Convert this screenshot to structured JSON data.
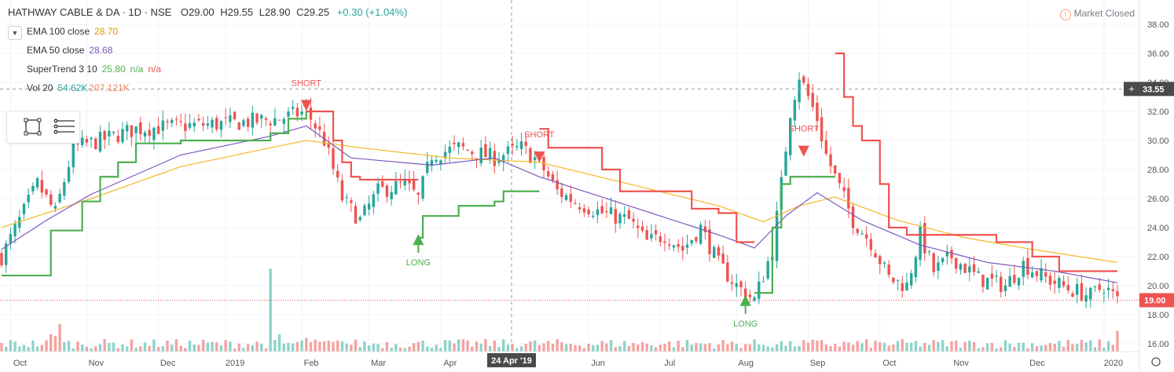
{
  "header": {
    "symbol": "HATHWAY CABLE & DA · 1D · NSE",
    "open": "O29.00",
    "high": "H29.55",
    "low": "L28.90",
    "close": "C29.25",
    "change": "+0.30 (+1.04%)"
  },
  "legend": [
    {
      "name": "EMA 100 close",
      "value": "28.70",
      "color": "#f5b826"
    },
    {
      "name": "EMA 50 close",
      "value": "28.68",
      "color": "#7e57c2"
    },
    {
      "name": "SuperTrend 3 10",
      "value": "25.80",
      "extra": "n/a",
      "extra2": "n/a",
      "color": "#4caf50",
      "color2": "#ef5350"
    },
    {
      "name": "Vol 20",
      "value": "54.62K",
      "extra": "207.121K",
      "color": "#26a69a",
      "color2": "#ef8a65"
    }
  ],
  "collapse_icon": "chevron-down-icon",
  "market_status": "Market Closed",
  "crosshair_date": "24 Apr '19",
  "crosshair_price": "33.55",
  "last_price": "19.00",
  "colors": {
    "up": "#26a69a",
    "down": "#ef5350",
    "ema100": "#f5b826",
    "ema50": "#7e57c2",
    "st_up": "#4caf50",
    "st_down": "#ef5350",
    "vol_up": "#8ed3c9",
    "vol_down": "#f5a3a1"
  },
  "chart_data": {
    "type": "candlestick",
    "ylim": [
      15,
      39
    ],
    "y_ticks": [
      16,
      18,
      20,
      22,
      24,
      26,
      28,
      30,
      32,
      34,
      36,
      38
    ],
    "x_ticks": [
      {
        "label": "Oct",
        "t": 2
      },
      {
        "label": "Nov",
        "t": 19
      },
      {
        "label": "Dec",
        "t": 35
      },
      {
        "label": "2019",
        "t": 50
      },
      {
        "label": "Feb",
        "t": 67
      },
      {
        "label": "Mar",
        "t": 82
      },
      {
        "label": "Apr",
        "t": 98
      },
      {
        "label": "Jun",
        "t": 131
      },
      {
        "label": "Jul",
        "t": 147
      },
      {
        "label": "Aug",
        "t": 164
      },
      {
        "label": "Sep",
        "t": 180
      },
      {
        "label": "Oct",
        "t": 196
      },
      {
        "label": "Nov",
        "t": 212
      },
      {
        "label": "Dec",
        "t": 229
      },
      {
        "label": "2020",
        "t": 246
      }
    ],
    "n_bars": 250,
    "key_closes": [
      [
        0,
        22.0
      ],
      [
        4,
        24.5
      ],
      [
        8,
        27.0
      ],
      [
        12,
        25.0
      ],
      [
        16,
        29.5
      ],
      [
        22,
        30.0
      ],
      [
        30,
        30.8
      ],
      [
        40,
        31.0
      ],
      [
        52,
        31.2
      ],
      [
        62,
        31.5
      ],
      [
        68,
        32.0
      ],
      [
        72,
        30.0
      ],
      [
        76,
        26.0
      ],
      [
        80,
        24.5
      ],
      [
        84,
        26.5
      ],
      [
        90,
        27.0
      ],
      [
        93,
        26.0
      ],
      [
        96,
        29.0
      ],
      [
        102,
        29.5
      ],
      [
        110,
        28.8
      ],
      [
        116,
        29.5
      ],
      [
        120,
        28.5
      ],
      [
        124,
        26.5
      ],
      [
        128,
        25.8
      ],
      [
        134,
        25.0
      ],
      [
        140,
        24.5
      ],
      [
        144,
        23.0
      ],
      [
        148,
        23.5
      ],
      [
        152,
        22.5
      ],
      [
        156,
        24.0
      ],
      [
        160,
        21.5
      ],
      [
        164,
        20.0
      ],
      [
        168,
        19.0
      ],
      [
        172,
        22.5
      ],
      [
        174,
        27.0
      ],
      [
        176,
        32.0
      ],
      [
        178,
        34.5
      ],
      [
        180,
        33.0
      ],
      [
        182,
        31.5
      ],
      [
        184,
        29.0
      ],
      [
        186,
        27.5
      ],
      [
        190,
        24.5
      ],
      [
        194,
        23.0
      ],
      [
        198,
        20.5
      ],
      [
        202,
        20.0
      ],
      [
        205,
        23.5
      ],
      [
        208,
        21.0
      ],
      [
        212,
        22.0
      ],
      [
        218,
        20.5
      ],
      [
        224,
        20.0
      ],
      [
        228,
        21.5
      ],
      [
        233,
        20.5
      ],
      [
        238,
        19.8
      ],
      [
        243,
        19.3
      ],
      [
        246,
        20.0
      ],
      [
        249,
        19.0
      ]
    ],
    "ema100_points": [
      [
        0,
        24.0
      ],
      [
        20,
        26.0
      ],
      [
        40,
        28.2
      ],
      [
        60,
        29.5
      ],
      [
        68,
        30.0
      ],
      [
        80,
        29.5
      ],
      [
        100,
        28.8
      ],
      [
        120,
        28.5
      ],
      [
        140,
        27.0
      ],
      [
        160,
        25.5
      ],
      [
        170,
        24.4
      ],
      [
        178,
        25.5
      ],
      [
        186,
        26.1
      ],
      [
        200,
        24.5
      ],
      [
        215,
        23.3
      ],
      [
        230,
        22.5
      ],
      [
        249,
        21.6
      ]
    ],
    "ema50_points": [
      [
        0,
        22.5
      ],
      [
        10,
        24.5
      ],
      [
        20,
        26.3
      ],
      [
        40,
        29.0
      ],
      [
        60,
        30.3
      ],
      [
        68,
        31.0
      ],
      [
        78,
        28.8
      ],
      [
        96,
        28.3
      ],
      [
        110,
        28.8
      ],
      [
        120,
        27.5
      ],
      [
        140,
        25.5
      ],
      [
        160,
        23.5
      ],
      [
        168,
        22.6
      ],
      [
        175,
        24.8
      ],
      [
        182,
        26.4
      ],
      [
        192,
        24.5
      ],
      [
        205,
        22.8
      ],
      [
        220,
        21.6
      ],
      [
        235,
        21.0
      ],
      [
        249,
        20.2
      ]
    ],
    "supertrend_up": [
      [
        [
          0,
          20.7
        ],
        [
          9,
          20.7
        ],
        [
          11,
          23.8
        ],
        [
          15,
          23.8
        ],
        [
          18,
          25.8
        ],
        [
          22,
          27.5
        ],
        [
          26,
          28.5
        ],
        [
          30,
          29.8
        ],
        [
          40,
          30.0
        ],
        [
          52,
          30.0
        ],
        [
          60,
          30.5
        ],
        [
          64,
          31.5
        ],
        [
          68,
          32.0
        ]
      ],
      [
        [
          93,
          23.3
        ],
        [
          94,
          24.8
        ],
        [
          100,
          24.8
        ],
        [
          102,
          25.5
        ],
        [
          110,
          25.8
        ],
        [
          112,
          26.5
        ],
        [
          120,
          26.5
        ]
      ],
      [
        [
          168,
          19.5
        ],
        [
          170,
          19.5
        ],
        [
          172,
          24.0
        ],
        [
          174,
          27.0
        ],
        [
          176,
          27.5
        ],
        [
          186,
          27.5
        ]
      ]
    ],
    "supertrend_down": [
      [
        [
          68,
          32.0
        ],
        [
          72,
          32.0
        ],
        [
          74,
          30.0
        ],
        [
          76,
          28.5
        ],
        [
          78,
          27.5
        ],
        [
          80,
          27.3
        ],
        [
          93,
          27.3
        ]
      ],
      [
        [
          120,
          30.8
        ],
        [
          122,
          29.5
        ],
        [
          130,
          29.5
        ],
        [
          134,
          28.0
        ],
        [
          138,
          26.5
        ],
        [
          148,
          26.5
        ],
        [
          154,
          25.3
        ],
        [
          160,
          25.0
        ],
        [
          164,
          23.0
        ],
        [
          168,
          23.0
        ]
      ],
      [
        [
          186,
          36.0
        ],
        [
          188,
          33.0
        ],
        [
          190,
          31.0
        ],
        [
          192,
          30.0
        ],
        [
          196,
          27.0
        ],
        [
          198,
          24.0
        ],
        [
          202,
          23.5
        ],
        [
          215,
          23.5
        ],
        [
          222,
          23.0
        ],
        [
          230,
          22.0
        ],
        [
          236,
          21.0
        ],
        [
          249,
          21.0
        ]
      ]
    ],
    "signals": [
      {
        "type": "short",
        "label": "SHORT",
        "t": 68,
        "price": 33.55
      },
      {
        "type": "long",
        "label": "LONG",
        "t": 93,
        "price": 22.8
      },
      {
        "type": "short",
        "label": "SHORT",
        "t": 120,
        "price": 30.0
      },
      {
        "type": "long",
        "label": "LONG",
        "t": 166,
        "price": 18.6
      },
      {
        "type": "short",
        "label": "SHORT",
        "t": 179,
        "price": 30.4
      }
    ],
    "volume_spikes": [
      [
        11,
        1.0,
        "down"
      ],
      [
        12,
        0.9,
        "down"
      ],
      [
        13,
        1.6,
        "down"
      ],
      [
        60,
        4.8,
        "up"
      ],
      [
        62,
        1.0,
        "up"
      ],
      [
        68,
        0.8,
        "down"
      ],
      [
        76,
        0.6,
        "up"
      ],
      [
        176,
        0.6,
        "up"
      ],
      [
        249,
        1.2,
        "down"
      ]
    ]
  }
}
